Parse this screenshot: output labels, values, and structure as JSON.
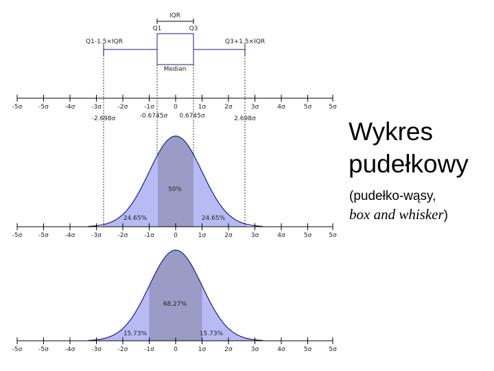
{
  "slide": {
    "title_line1": "Wykres",
    "title_line2": "pudełkowy",
    "subtitle_part1": "(pudełko-wąsy,",
    "subtitle_part2": "box and whisker",
    "subtitle_part3": ")"
  },
  "boxplot": {
    "iqr_label": "IQR",
    "q1_label": "Q1",
    "q3_label": "Q3",
    "lower_whisker_label": "Q1-1.5×IQR",
    "upper_whisker_label": "Q3+1.5×IQR",
    "median_label": "Median",
    "q1_value": -0.6745,
    "q3_value": 0.6745,
    "whisker_low": -2.698,
    "whisker_high": 2.698
  },
  "axis": {
    "ticks": [
      {
        "value": -5,
        "label": "-5σ"
      },
      {
        "value": -4,
        "label": "-4σ"
      },
      {
        "value": -3,
        "label": "-3σ"
      },
      {
        "value": -2,
        "label": "-2σ"
      },
      {
        "value": -1,
        "label": "-1σ"
      },
      {
        "value": 0,
        "label": "0"
      },
      {
        "value": 1,
        "label": "1σ"
      },
      {
        "value": 2,
        "label": "2σ"
      },
      {
        "value": 3,
        "label": "3σ"
      },
      {
        "value": 4,
        "label": "4σ"
      },
      {
        "value": 5,
        "label": "5σ"
      }
    ],
    "edge_left_label": "-5σ",
    "edge_right_label": "5σ",
    "mark_whisker_low": "-2.698σ",
    "mark_q1": "-0.6745σ",
    "mark_q3": "0.6745σ",
    "mark_whisker_high": "2.698σ"
  },
  "panel_iqr": {
    "center_pct": "50%",
    "left_pct": "24.65%",
    "right_pct": "24.65%",
    "shade_low": -0.6745,
    "shade_high": 0.6745,
    "tail_low": -2.698,
    "tail_high": 2.698
  },
  "panel_sigma": {
    "center_pct": "68.27%",
    "left_pct": "15.73%",
    "right_pct": "15.73%",
    "shade_low": -1,
    "shade_high": 1,
    "tail_low": -3,
    "tail_high": 3
  },
  "colors": {
    "curve_fill": "#b8baf4",
    "center_fill": "#9a9cc6",
    "curve_line": "#1a1a8a",
    "axis": "#000000"
  }
}
